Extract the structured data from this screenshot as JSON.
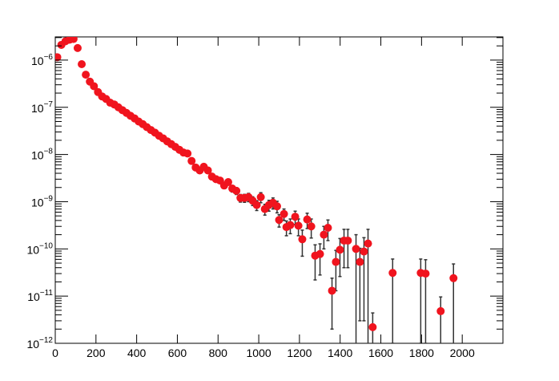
{
  "chart_data": {
    "type": "scatter",
    "log_y": true,
    "color": "#f0141e",
    "error_color": "#333333",
    "xlim": [
      0,
      2200
    ],
    "ylim": [
      1e-12,
      3.1e-06
    ],
    "xticks": [
      0,
      200,
      400,
      600,
      800,
      1000,
      1200,
      1400,
      1600,
      1800,
      2000
    ],
    "yticks": [
      {
        "value": 1e-12,
        "label": "10",
        "exponent": "−12"
      },
      {
        "value": 1e-11,
        "label": "10",
        "exponent": "−11"
      },
      {
        "value": 1e-10,
        "label": "10",
        "exponent": "−10"
      },
      {
        "value": 1e-09,
        "label": "10",
        "exponent": "−9"
      },
      {
        "value": 1e-08,
        "label": "10",
        "exponent": "−8"
      },
      {
        "value": 1e-07,
        "label": "10",
        "exponent": "−7"
      },
      {
        "value": 1e-06,
        "label": "10",
        "exponent": "−6"
      }
    ],
    "x": [
      10,
      30,
      50,
      70,
      90,
      110,
      130,
      150,
      170,
      190,
      210,
      230,
      250,
      270,
      290,
      310,
      330,
      350,
      370,
      390,
      410,
      430,
      450,
      470,
      490,
      510,
      530,
      550,
      570,
      590,
      610,
      630,
      650,
      670,
      690,
      710,
      730,
      750,
      770,
      790,
      810,
      830,
      850,
      870,
      890,
      910,
      930,
      950,
      970,
      990,
      1010,
      1030,
      1050,
      1070,
      1090,
      1100,
      1124,
      1136,
      1155,
      1179,
      1195,
      1214,
      1238,
      1258,
      1277,
      1301,
      1320,
      1340,
      1360,
      1379,
      1399,
      1419,
      1438,
      1478,
      1497,
      1517,
      1537,
      1560,
      1658,
      1796,
      1820,
      1894,
      1957
    ],
    "values": [
      1.15e-06,
      2.1e-06,
      2.5e-06,
      2.7e-06,
      2.8e-06,
      1.8e-06,
      8.2e-07,
      4.9e-07,
      3.5e-07,
      2.8e-07,
      2.1e-07,
      1.7e-07,
      1.5e-07,
      1.25e-07,
      1.15e-07,
      1e-07,
      8.7e-08,
      7.6e-08,
      6.6e-08,
      5.8e-08,
      5e-08,
      4.4e-08,
      3.8e-08,
      3.3e-08,
      2.9e-08,
      2.5e-08,
      2.2e-08,
      1.9e-08,
      1.66e-08,
      1.45e-08,
      1.26e-08,
      1.1e-08,
      1.05e-08,
      7.3e-09,
      5.3e-09,
      4.6e-09,
      5.5e-09,
      4.6e-09,
      3.4e-09,
      3e-09,
      2.8e-09,
      2.2e-09,
      2.6e-09,
      1.9e-09,
      1.7e-09,
      1.2e-09,
      1.2e-09,
      1.25e-09,
      1.05e-09,
      8.5e-10,
      1.25e-09,
      7e-10,
      8.5e-10,
      9.5e-10,
      8e-10,
      4.1e-10,
      5.5e-10,
      2.9e-10,
      3.2e-10,
      4.8e-10,
      3.1e-10,
      1.6e-10,
      4.2e-10,
      3e-10,
      7.2e-11,
      7.8e-11,
      2e-10,
      2.8e-10,
      1.3e-11,
      5.3e-11,
      9.6e-11,
      1.5e-10,
      1.5e-10,
      1e-10,
      5.3e-11,
      8.8e-11,
      1.3e-10,
      2.2e-12,
      3.1e-11,
      3.1e-11,
      3e-11,
      4.8e-12,
      2.4e-11
    ],
    "errors": [
      null,
      null,
      null,
      null,
      null,
      null,
      null,
      null,
      null,
      null,
      null,
      null,
      null,
      null,
      null,
      null,
      null,
      null,
      null,
      null,
      null,
      null,
      null,
      null,
      null,
      null,
      null,
      null,
      null,
      null,
      null,
      null,
      1e-09,
      7e-10,
      5e-10,
      5e-10,
      6e-10,
      5e-10,
      4e-10,
      4e-10,
      3.5e-10,
      3e-10,
      3.5e-10,
      3e-10,
      2.8e-10,
      2.2e-10,
      2.3e-10,
      2.5e-10,
      2.2e-10,
      2e-10,
      3e-10,
      1.8e-10,
      2.2e-10,
      2.5e-10,
      2.2e-10,
      1.2e-10,
      1.5e-10,
      1e-10,
      1.1e-10,
      1.5e-10,
      1.2e-10,
      9e-11,
      1.5e-10,
      1.3e-10,
      5e-11,
      5e-11,
      1e-10,
      1.3e-10,
      1.1e-11,
      4e-11,
      7e-11,
      1.1e-10,
      1.1e-10,
      1e-10,
      5e-11,
      8.5e-11,
      1.3e-10,
      2.2e-12,
      3e-11,
      3e-11,
      2.9e-11,
      4.8e-12,
      2.4e-11
    ]
  }
}
